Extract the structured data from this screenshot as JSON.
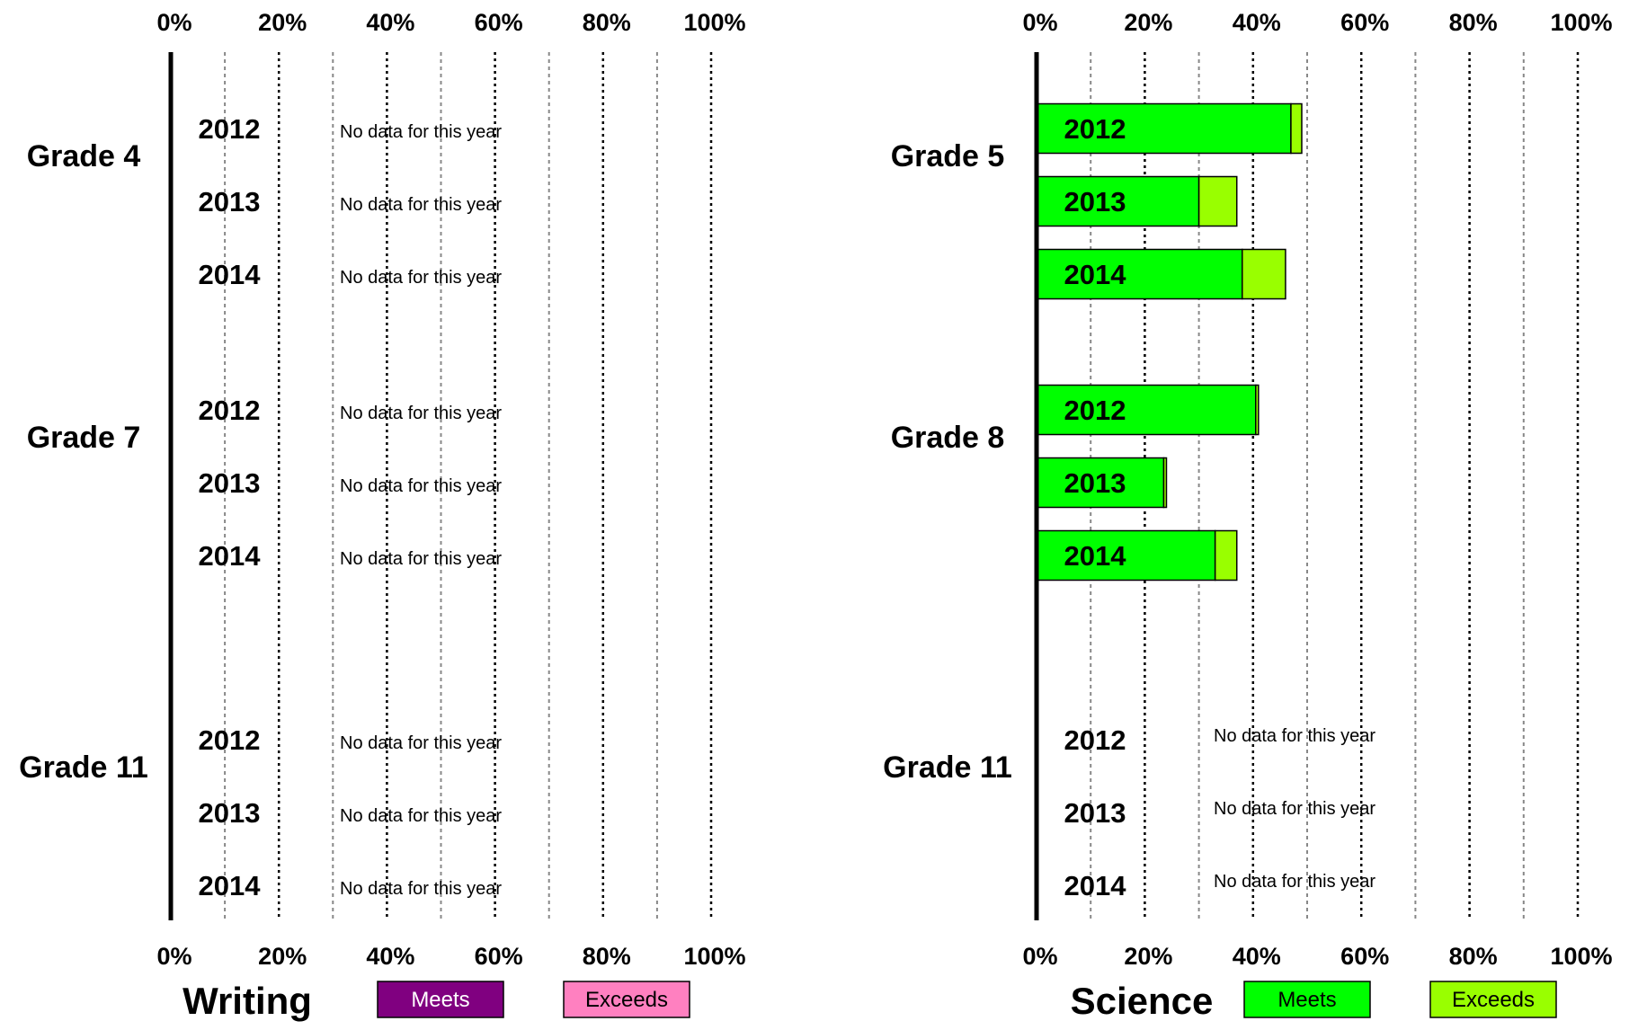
{
  "chart_data": [
    {
      "type": "bar",
      "orientation": "horizontal",
      "stacked": true,
      "title": "Writing",
      "xlim": [
        0,
        100
      ],
      "x_tick_labels": [
        "0%",
        "20%",
        "40%",
        "60%",
        "80%",
        "100%"
      ],
      "grid": true,
      "no_data_label": "No data for this year",
      "legend": [
        {
          "name": "Meets",
          "color": "#800080",
          "text_color": "#ffffff"
        },
        {
          "name": "Exceeds",
          "color": "#ff80c0",
          "text_color": "#000000"
        }
      ],
      "groups": [
        {
          "label": "Grade 4",
          "rows": [
            {
              "year": "2012",
              "meets": null,
              "exceeds": null
            },
            {
              "year": "2013",
              "meets": null,
              "exceeds": null
            },
            {
              "year": "2014",
              "meets": null,
              "exceeds": null
            }
          ]
        },
        {
          "label": "Grade 7",
          "rows": [
            {
              "year": "2012",
              "meets": null,
              "exceeds": null
            },
            {
              "year": "2013",
              "meets": null,
              "exceeds": null
            },
            {
              "year": "2014",
              "meets": null,
              "exceeds": null
            }
          ]
        },
        {
          "label": "Grade 11",
          "rows": [
            {
              "year": "2012",
              "meets": null,
              "exceeds": null
            },
            {
              "year": "2013",
              "meets": null,
              "exceeds": null
            },
            {
              "year": "2014",
              "meets": null,
              "exceeds": null
            }
          ]
        }
      ]
    },
    {
      "type": "bar",
      "orientation": "horizontal",
      "stacked": true,
      "title": "Science",
      "xlim": [
        0,
        100
      ],
      "x_tick_labels": [
        "0%",
        "20%",
        "40%",
        "60%",
        "80%",
        "100%"
      ],
      "grid": true,
      "no_data_label": "No data for this year",
      "legend": [
        {
          "name": "Meets",
          "color": "#00ff00",
          "text_color": "#000000"
        },
        {
          "name": "Exceeds",
          "color": "#99ff00",
          "text_color": "#000000"
        }
      ],
      "groups": [
        {
          "label": "Grade 5",
          "rows": [
            {
              "year": "2012",
              "meets": 47,
              "exceeds": 2
            },
            {
              "year": "2013",
              "meets": 30,
              "exceeds": 7
            },
            {
              "year": "2014",
              "meets": 38,
              "exceeds": 8
            }
          ]
        },
        {
          "label": "Grade 8",
          "rows": [
            {
              "year": "2012",
              "meets": 40.5,
              "exceeds": 0.5
            },
            {
              "year": "2013",
              "meets": 23.5,
              "exceeds": 0.5
            },
            {
              "year": "2014",
              "meets": 33,
              "exceeds": 4
            }
          ]
        },
        {
          "label": "Grade 11",
          "rows": [
            {
              "year": "2012",
              "meets": null,
              "exceeds": null
            },
            {
              "year": "2013",
              "meets": null,
              "exceeds": null
            },
            {
              "year": "2014",
              "meets": null,
              "exceeds": null
            }
          ]
        }
      ]
    }
  ]
}
